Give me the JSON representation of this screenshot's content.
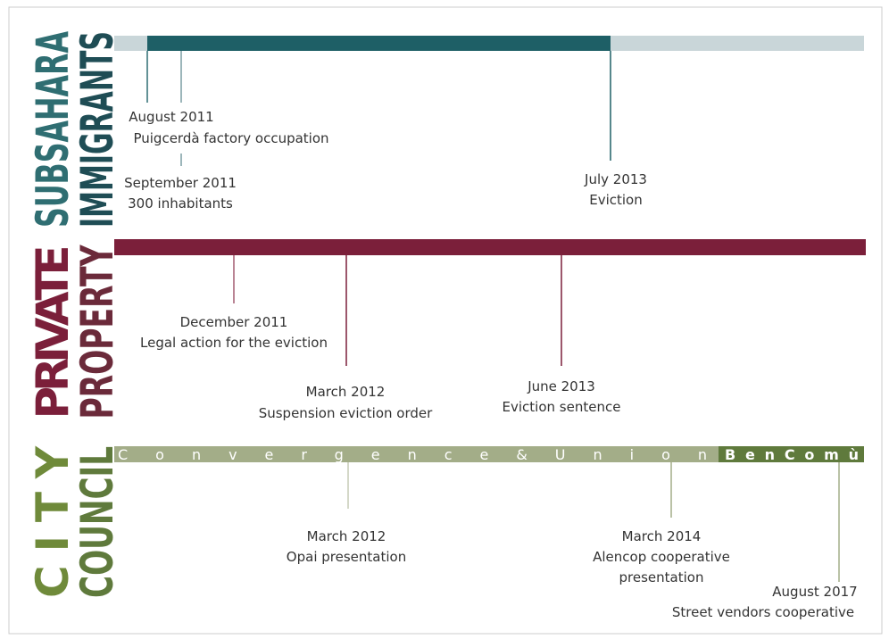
{
  "rows": [
    {
      "label": [
        "SUBSAHARA",
        "IMMIGRANTS"
      ],
      "events": [
        {
          "date": "August 2011",
          "text": [
            "Puigcerdà factory occupation"
          ]
        },
        {
          "date": "September 2011",
          "text": [
            "300 inhabitants"
          ]
        },
        {
          "date": "July 2013",
          "text": [
            "Eviction"
          ]
        }
      ]
    },
    {
      "label": [
        "PRIVATE",
        "PROPERTY"
      ],
      "events": [
        {
          "date": "December 2011",
          "text": [
            "Legal action for the eviction"
          ]
        },
        {
          "date": "March 2012",
          "text": [
            "Suspension eviction order"
          ]
        },
        {
          "date": "June 2013",
          "text": [
            "Eviction sentence"
          ]
        }
      ]
    },
    {
      "label": [
        "CITY",
        "COUNCIL"
      ],
      "bars": [
        "Convergence&Union",
        "BenComù"
      ],
      "events": [
        {
          "date": "March 2012",
          "text": [
            "Opai presentation"
          ]
        },
        {
          "date": "March 2014",
          "text": [
            "Alencop cooperative",
            "presentation"
          ]
        },
        {
          "date": "August 2017",
          "text": [
            "Street vendors cooperative"
          ]
        }
      ]
    }
  ]
}
